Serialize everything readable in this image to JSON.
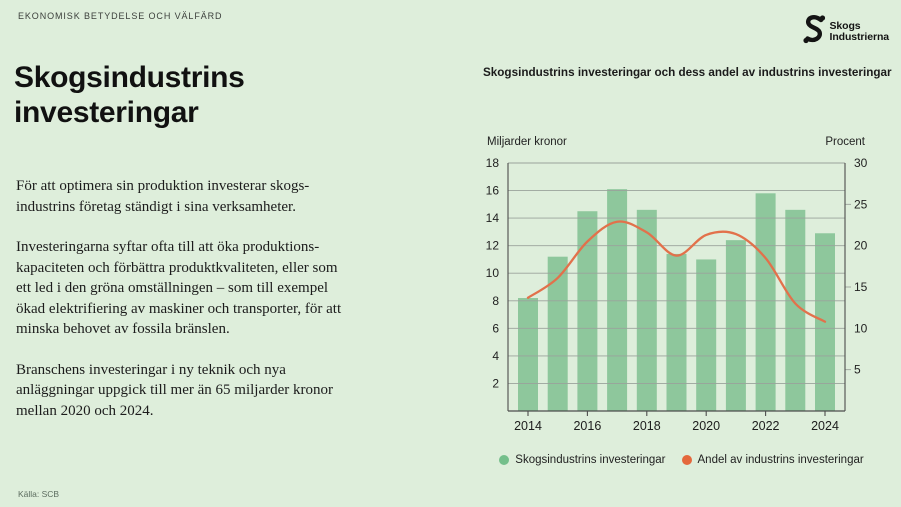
{
  "slide": {
    "eyebrow": "EKONOMISK BETYDELSE OCH VÄLFÄRD",
    "title": "Skogsindustrins\ninvesteringar",
    "paragraphs": [
      "För att optimera sin produktion investerar skogs-\nindustrins företag ständigt i sina verksamheter.",
      "Investeringarna syftar ofta till att öka produktions-\nkapaciteten och förbättra produktkvaliteten, eller som\nett led i den gröna omställningen – som till exempel\nökad elektrifiering av maskiner och transporter, för att\nminska behovet av fossila bränslen.",
      "Branschens investeringar i ny teknik och nya\nanläggningar uppgick till mer än 65 miljarder kronor\nmellan 2020 och 2024."
    ],
    "source": "Källa: SCB"
  },
  "logo": {
    "name": "Skogsindustrierna",
    "line1": "Skogs",
    "line2": "Industrierna"
  },
  "chart_data": {
    "type": "bar",
    "title": "Skogsindustrins investeringar och dess andel av industrins investeringar",
    "categories": [
      2014,
      2015,
      2016,
      2017,
      2018,
      2019,
      2020,
      2021,
      2022,
      2023,
      2024
    ],
    "x_tick_labels": [
      "2014",
      "2016",
      "2018",
      "2020",
      "2022",
      "2024"
    ],
    "left_axis": {
      "label": "Miljarder kronor",
      "min": 0,
      "max": 18,
      "ticks": [
        2,
        4,
        6,
        8,
        10,
        12,
        14,
        16,
        18
      ]
    },
    "right_axis": {
      "label": "Procent",
      "min": 0,
      "max": 30,
      "ticks": [
        5,
        10,
        15,
        20,
        25,
        30
      ]
    },
    "series": [
      {
        "name": "Skogsindustrins investeringar",
        "type": "bar",
        "axis": "left",
        "color": "#8ec79c",
        "values": [
          8.2,
          11.2,
          14.5,
          16.1,
          14.6,
          11.4,
          11.0,
          12.4,
          15.8,
          14.6,
          12.9
        ]
      },
      {
        "name": "Andel av industrins investeringar",
        "type": "line",
        "axis": "right",
        "color": "#e2714b",
        "values": [
          13.7,
          16.1,
          20.5,
          22.9,
          21.6,
          18.8,
          21.3,
          21.4,
          18.5,
          13.0,
          10.8
        ]
      }
    ],
    "legend_dot_colors": [
      "#74bf8b",
      "#e4683c"
    ],
    "grid": true,
    "grid_color": "#9aa29b",
    "axis_color": "#4d4d4d",
    "background": "#deeedb"
  }
}
